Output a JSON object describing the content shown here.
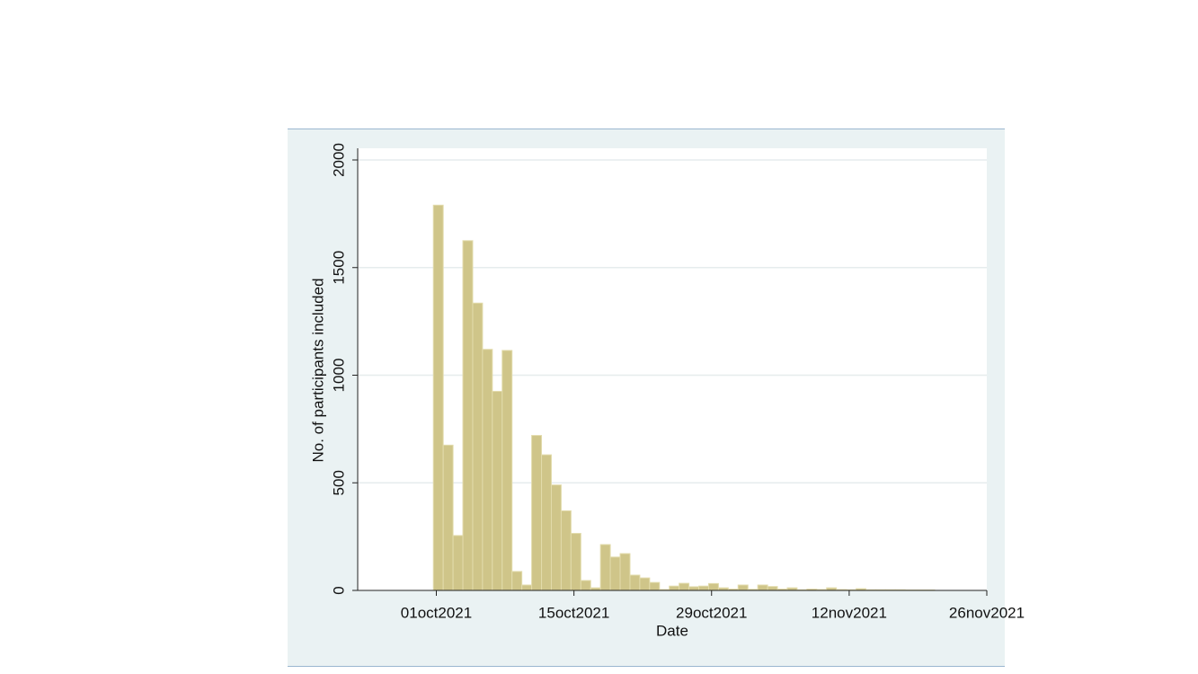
{
  "chart_data": {
    "type": "bar",
    "x_label": "Date",
    "y_label": "No. of participants included",
    "x": [
      "2021-10-01",
      "2021-10-02",
      "2021-10-03",
      "2021-10-04",
      "2021-10-05",
      "2021-10-06",
      "2021-10-07",
      "2021-10-08",
      "2021-10-09",
      "2021-10-10",
      "2021-10-11",
      "2021-10-12",
      "2021-10-13",
      "2021-10-14",
      "2021-10-15",
      "2021-10-16",
      "2021-10-17",
      "2021-10-18",
      "2021-10-19",
      "2021-10-20",
      "2021-10-21",
      "2021-10-22",
      "2021-10-23",
      "2021-10-24",
      "2021-10-25",
      "2021-10-26",
      "2021-10-27",
      "2021-10-28",
      "2021-10-29",
      "2021-10-30",
      "2021-10-31",
      "2021-11-01",
      "2021-11-02",
      "2021-11-03",
      "2021-11-04",
      "2021-11-05",
      "2021-11-06",
      "2021-11-07",
      "2021-11-08",
      "2021-11-09",
      "2021-11-10",
      "2021-11-11",
      "2021-11-12",
      "2021-11-13",
      "2021-11-14",
      "2021-11-15",
      "2021-11-16",
      "2021-11-17",
      "2021-11-18",
      "2021-11-19",
      "2021-11-20"
    ],
    "values": [
      1790,
      675,
      255,
      1625,
      1335,
      1120,
      925,
      1115,
      88,
      25,
      720,
      630,
      490,
      370,
      265,
      46,
      12,
      213,
      155,
      171,
      71,
      58,
      37,
      4,
      20,
      33,
      17,
      20,
      32,
      12,
      6,
      25,
      5,
      25,
      18,
      6,
      12,
      3,
      6,
      4,
      12,
      4,
      3,
      8,
      3,
      3,
      3,
      3,
      2,
      2,
      2
    ],
    "color": "#cfc589",
    "xlim": [
      "2021-09-23",
      "2021-11-26"
    ],
    "xticks": [
      {
        "value": "2021-10-01",
        "label": "01oct2021"
      },
      {
        "value": "2021-10-15",
        "label": "15oct2021"
      },
      {
        "value": "2021-10-29",
        "label": "29oct2021"
      },
      {
        "value": "2021-11-12",
        "label": "12nov2021"
      },
      {
        "value": "2021-11-26",
        "label": "26nov2021"
      }
    ],
    "ylim": [
      0,
      2000
    ],
    "yticks": [
      0,
      500,
      1000,
      1500,
      2000
    ],
    "grid": true
  }
}
